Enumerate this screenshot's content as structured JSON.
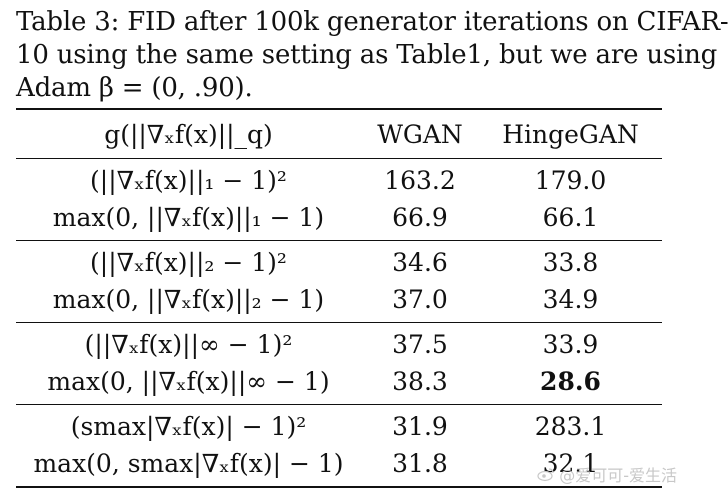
{
  "caption": {
    "line1": "Table 3: FID after 100k generator iterations on CIFAR-",
    "line2": "10 using the same setting as Table1, but we are using",
    "line3": "Adam β = (0, .90)."
  },
  "table": {
    "headers": {
      "expr": "g(||∇ₓf(x)||_q)",
      "wgan": "WGAN",
      "hinge": "HingeGAN"
    },
    "groups": [
      {
        "rows": [
          {
            "expr": "(||∇ₓf(x)||₁ − 1)²",
            "wgan": "163.2",
            "hinge": "179.0"
          },
          {
            "expr": "max(0, ||∇ₓf(x)||₁ − 1)",
            "wgan": "66.9",
            "hinge": "66.1"
          }
        ]
      },
      {
        "rows": [
          {
            "expr": "(||∇ₓf(x)||₂ − 1)²",
            "wgan": "34.6",
            "hinge": "33.8"
          },
          {
            "expr": "max(0, ||∇ₓf(x)||₂ − 1)",
            "wgan": "37.0",
            "hinge": "34.9"
          }
        ]
      },
      {
        "rows": [
          {
            "expr": "(||∇ₓf(x)||∞ − 1)²",
            "wgan": "37.5",
            "hinge": "33.9"
          },
          {
            "expr": "max(0, ||∇ₓf(x)||∞ − 1)",
            "wgan": "38.3",
            "hinge": "28.6",
            "hinge_bold": true
          }
        ]
      },
      {
        "rows": [
          {
            "expr": "(smax|∇ₓf(x)| − 1)²",
            "wgan": "31.9",
            "hinge": "283.1"
          },
          {
            "expr": "max(0, smax|∇ₓf(x)| − 1)",
            "wgan": "31.8",
            "hinge": "32.1"
          }
        ]
      }
    ]
  },
  "watermark": {
    "text": "@爱可可-爱生活",
    "icon": "weibo-icon"
  }
}
